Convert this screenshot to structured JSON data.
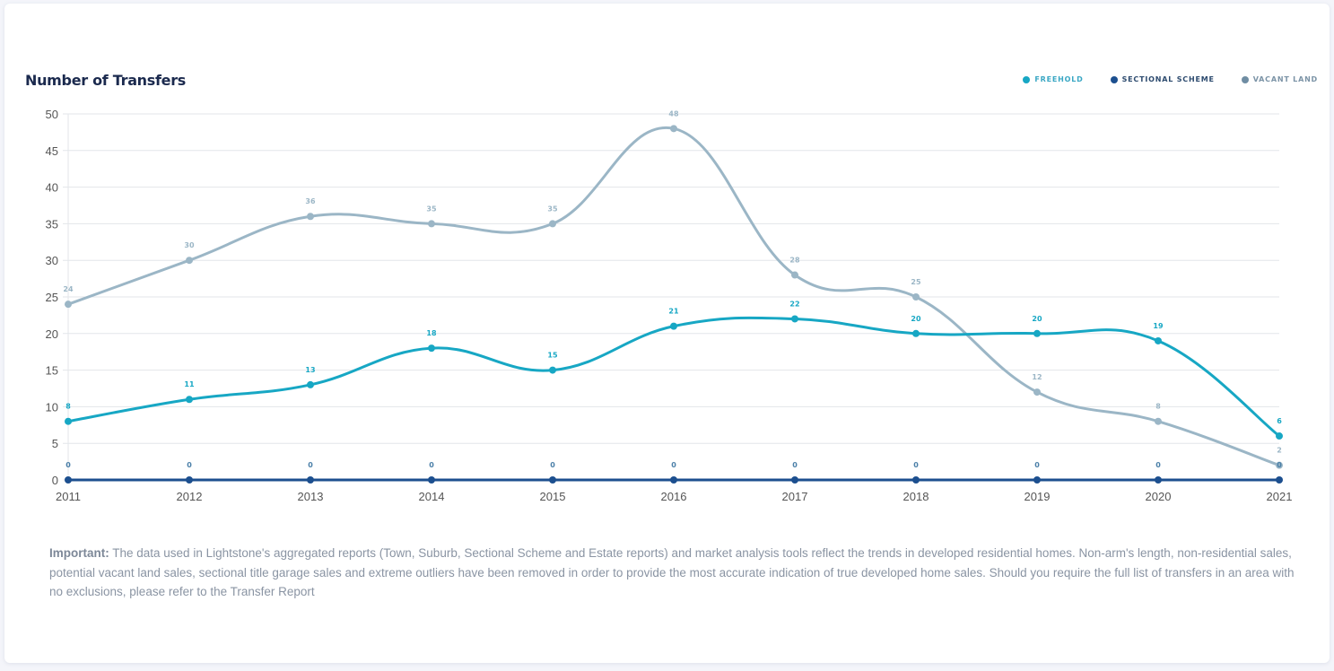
{
  "chart_data": {
    "type": "line",
    "title": "Number of Transfers",
    "xlabel": "",
    "ylabel": "",
    "x": [
      "2011",
      "2012",
      "2013",
      "2014",
      "2015",
      "2016",
      "2017",
      "2018",
      "2019",
      "2020",
      "2021"
    ],
    "ylim": [
      0,
      50
    ],
    "yticks": [
      "0",
      "5",
      "10",
      "15",
      "20",
      "25",
      "30",
      "35",
      "40",
      "45",
      "50"
    ],
    "grid": true,
    "legend_position": "top-right",
    "series": [
      {
        "name": "FREEHOLD",
        "color": "#17a7c4",
        "label_color": "#17a7c4",
        "values": [
          8,
          11,
          13,
          18,
          15,
          21,
          22,
          20,
          20,
          19,
          6
        ]
      },
      {
        "name": "SECTIONAL SCHEME",
        "color": "#1c4f8f",
        "label_color": "#4a7fa8",
        "values": [
          0,
          0,
          0,
          0,
          0,
          0,
          0,
          0,
          0,
          0,
          0
        ]
      },
      {
        "name": "VACANT LAND",
        "color": "#9bb6c6",
        "label_color": "#9bb6c6",
        "values": [
          24,
          30,
          36,
          35,
          35,
          48,
          28,
          25,
          12,
          8,
          2
        ]
      }
    ]
  },
  "legend": {
    "items": [
      {
        "label": "FREEHOLD",
        "color": "#17a7c4",
        "text_color": "#3aa7c4"
      },
      {
        "label": "SECTIONAL SCHEME",
        "color": "#1c4f8f",
        "text_color": "#2c4a6e"
      },
      {
        "label": "VACANT LAND",
        "color": "#6f8da3",
        "text_color": "#7b93a6"
      }
    ]
  },
  "note": {
    "bold": "Important:",
    "text": " The data used in Lightstone's aggregated reports (Town, Suburb, Sectional Scheme and Estate reports) and market analysis tools reflect the trends in developed residential homes. Non-arm's length, non-residential sales, potential vacant land sales, sectional title garage sales and extreme outliers have been removed in order to provide the most accurate indication of true developed home sales. Should you require the full list of transfers in an area with no exclusions, please refer to the Transfer Report"
  }
}
